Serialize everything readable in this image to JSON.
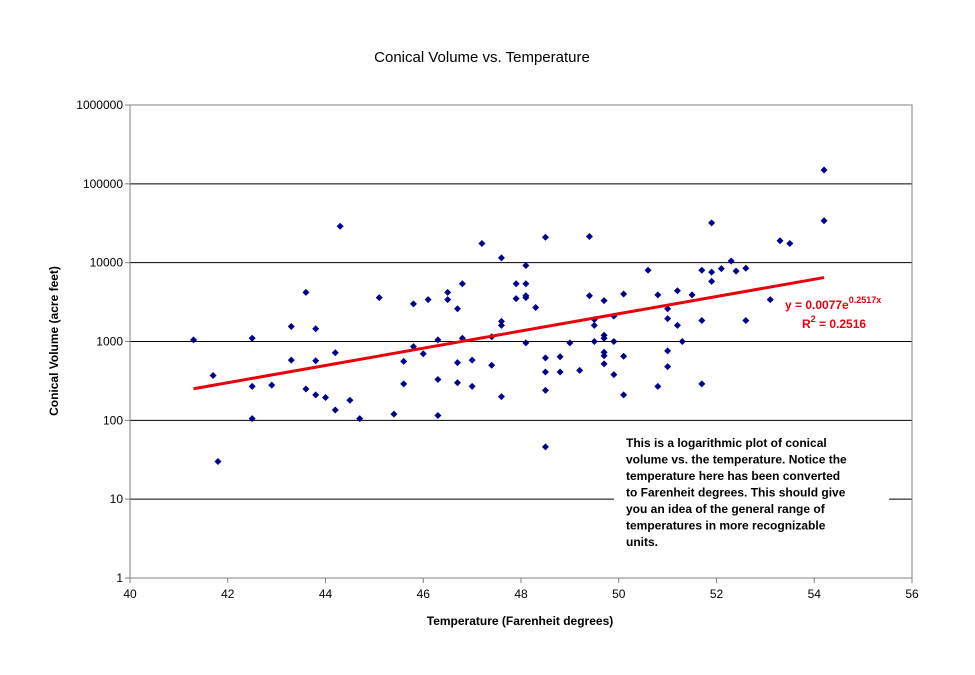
{
  "chart_data": {
    "type": "scatter",
    "title": "Conical Volume vs. Temperature",
    "xlabel": "Temperature (Farenheit degrees)",
    "ylabel": "Conical Volume (acre feet)",
    "xlim": [
      40,
      56
    ],
    "ylim": [
      1,
      1000000
    ],
    "yscale": "log",
    "xticks": [
      "40",
      "42",
      "44",
      "46",
      "48",
      "50",
      "52",
      "54",
      "56"
    ],
    "yticks": [
      "1",
      "10",
      "100",
      "1000",
      "10000",
      "100000",
      "1000000"
    ],
    "grid": "horizontal",
    "colors": {
      "points": "#00008b",
      "trendline": "#e8000b"
    },
    "series": [
      {
        "points": [
          [
            41.3,
            1050
          ],
          [
            41.7,
            370
          ],
          [
            41.8,
            30
          ],
          [
            42.5,
            1100
          ],
          [
            42.5,
            270
          ],
          [
            42.5,
            105
          ],
          [
            42.9,
            280
          ],
          [
            43.3,
            1550
          ],
          [
            43.3,
            580
          ],
          [
            43.6,
            4200
          ],
          [
            43.6,
            250
          ],
          [
            43.8,
            1450
          ],
          [
            43.8,
            570
          ],
          [
            43.8,
            210
          ],
          [
            44.0,
            195
          ],
          [
            44.2,
            720
          ],
          [
            44.2,
            135
          ],
          [
            44.3,
            29000
          ],
          [
            44.5,
            180
          ],
          [
            44.7,
            105
          ],
          [
            45.1,
            3600
          ],
          [
            45.4,
            120
          ],
          [
            45.6,
            560
          ],
          [
            45.6,
            290
          ],
          [
            45.8,
            3000
          ],
          [
            45.8,
            860
          ],
          [
            46.0,
            700
          ],
          [
            46.1,
            3400
          ],
          [
            46.3,
            1050
          ],
          [
            46.3,
            330
          ],
          [
            46.3,
            115
          ],
          [
            46.5,
            4200
          ],
          [
            46.5,
            3400
          ],
          [
            46.7,
            2600
          ],
          [
            46.7,
            540
          ],
          [
            46.7,
            300
          ],
          [
            46.8,
            5400
          ],
          [
            46.8,
            1100
          ],
          [
            47.0,
            580
          ],
          [
            47.0,
            270
          ],
          [
            47.2,
            17500
          ],
          [
            47.4,
            1150
          ],
          [
            47.4,
            500
          ],
          [
            47.6,
            11500
          ],
          [
            47.6,
            1800
          ],
          [
            47.6,
            1600
          ],
          [
            47.6,
            200
          ],
          [
            47.9,
            5400
          ],
          [
            47.9,
            3500
          ],
          [
            48.1,
            9200
          ],
          [
            48.1,
            5400
          ],
          [
            48.1,
            3800
          ],
          [
            48.1,
            3600
          ],
          [
            48.1,
            960
          ],
          [
            48.3,
            2700
          ],
          [
            48.5,
            21000
          ],
          [
            48.5,
            620
          ],
          [
            48.5,
            410
          ],
          [
            48.5,
            240
          ],
          [
            48.5,
            46
          ],
          [
            48.8,
            640
          ],
          [
            48.8,
            410
          ],
          [
            49.0,
            960
          ],
          [
            49.2,
            430
          ],
          [
            49.4,
            21500
          ],
          [
            49.4,
            3800
          ],
          [
            49.5,
            1900
          ],
          [
            49.5,
            1600
          ],
          [
            49.5,
            1000
          ],
          [
            49.7,
            3300
          ],
          [
            49.7,
            1200
          ],
          [
            49.7,
            1100
          ],
          [
            49.7,
            730
          ],
          [
            49.7,
            660
          ],
          [
            49.7,
            520
          ],
          [
            49.9,
            2100
          ],
          [
            49.9,
            1000
          ],
          [
            49.9,
            380
          ],
          [
            50.1,
            4000
          ],
          [
            50.1,
            650
          ],
          [
            50.1,
            210
          ],
          [
            50.6,
            8000
          ],
          [
            50.8,
            3900
          ],
          [
            50.8,
            270
          ],
          [
            51.0,
            2600
          ],
          [
            51.0,
            1950
          ],
          [
            51.0,
            760
          ],
          [
            51.0,
            480
          ],
          [
            51.2,
            4400
          ],
          [
            51.2,
            1600
          ],
          [
            51.3,
            1000
          ],
          [
            51.5,
            3900
          ],
          [
            51.7,
            8000
          ],
          [
            51.7,
            1850
          ],
          [
            51.7,
            290
          ],
          [
            51.9,
            32000
          ],
          [
            51.9,
            7600
          ],
          [
            51.9,
            5800
          ],
          [
            52.1,
            8400
          ],
          [
            52.3,
            10500
          ],
          [
            52.4,
            7800
          ],
          [
            52.6,
            8500
          ],
          [
            52.6,
            1850
          ],
          [
            53.1,
            3400
          ],
          [
            53.3,
            19000
          ],
          [
            53.5,
            17500
          ],
          [
            54.2,
            150000
          ],
          [
            54.2,
            34000
          ]
        ]
      }
    ],
    "trendline": {
      "type": "exponential",
      "a": 0.0077,
      "b": 0.2517,
      "x_range": [
        41.3,
        54.2
      ],
      "equation_prefix": "y = 0.0077e",
      "equation_exp": "0.2517x",
      "r2_prefix": "R",
      "r2_sup": "2",
      "r2_suffix": " = 0.2516"
    },
    "annotation": [
      "This is a logarithmic plot of conical",
      "volume vs. the temperature.  Notice the",
      "temperature here has been converted",
      "to Farenheit degrees. This should give",
      "you an idea of the general range of",
      "temperatures in more recognizable",
      "units."
    ]
  }
}
